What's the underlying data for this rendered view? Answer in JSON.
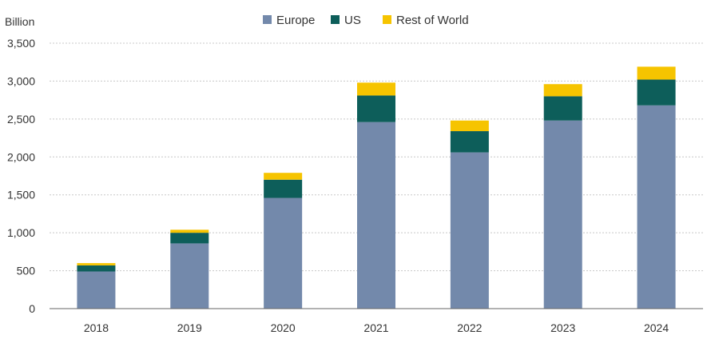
{
  "chart_data": {
    "type": "bar",
    "stacked": true,
    "unit_label": "Billion",
    "categories": [
      "2018",
      "2019",
      "2020",
      "2021",
      "2022",
      "2023",
      "2024"
    ],
    "series": [
      {
        "name": "Europe",
        "color": "#7389ab",
        "values": [
          490,
          860,
          1460,
          2460,
          2060,
          2480,
          2680
        ]
      },
      {
        "name": "US",
        "color": "#0d5e5a",
        "values": [
          80,
          140,
          240,
          350,
          280,
          320,
          340
        ]
      },
      {
        "name": "Rest of World",
        "color": "#f6c400",
        "values": [
          30,
          40,
          90,
          170,
          140,
          160,
          170
        ]
      }
    ],
    "ylim": [
      0,
      3500
    ],
    "yticks": [
      {
        "value": 0,
        "label": "0"
      },
      {
        "value": 500,
        "label": "500"
      },
      {
        "value": 1000,
        "label": "1,000"
      },
      {
        "value": 1500,
        "label": "1,500"
      },
      {
        "value": 2000,
        "label": "2,000"
      },
      {
        "value": 2500,
        "label": "2,500"
      },
      {
        "value": 3000,
        "label": "3,000"
      },
      {
        "value": 3500,
        "label": "3,500"
      }
    ],
    "grid": true,
    "legend_position": "top-center",
    "colors": {
      "grid": "#c8c8c8",
      "axis": "#666666",
      "text": "#333333"
    }
  }
}
